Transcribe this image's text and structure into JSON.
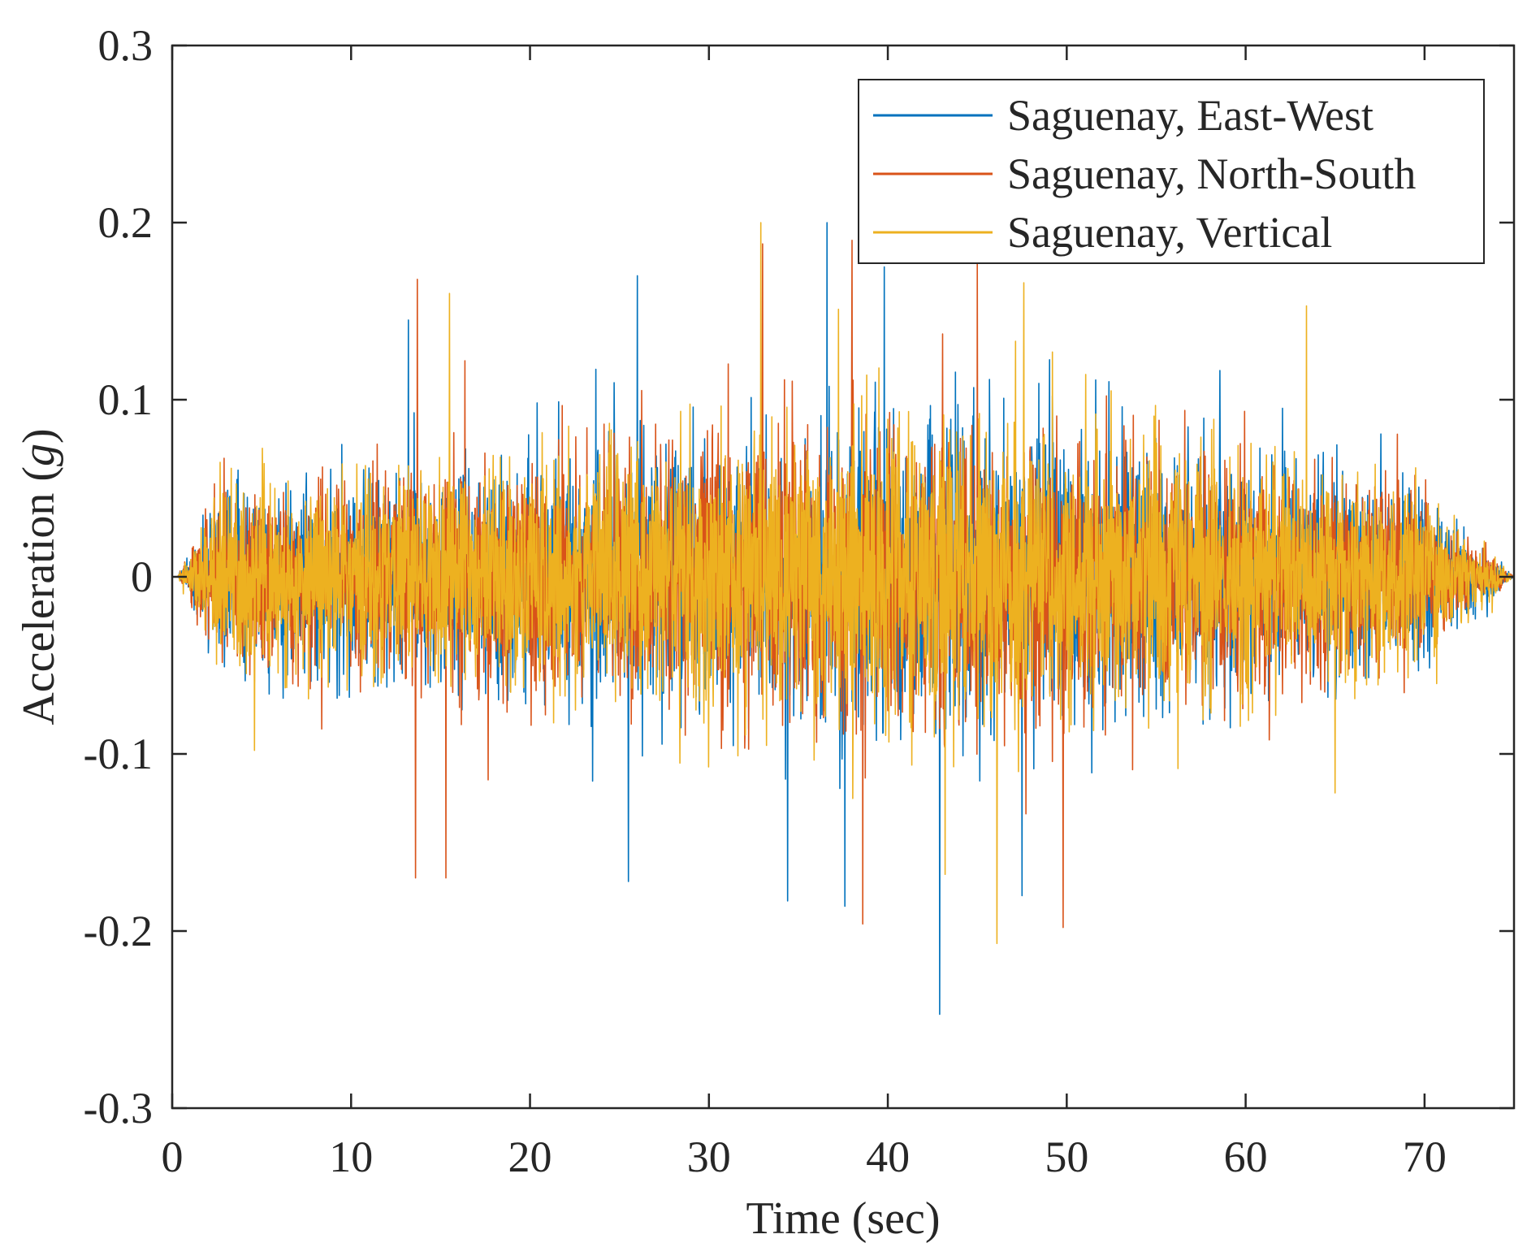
{
  "chart_data": {
    "type": "line",
    "title": "",
    "xlabel": "Time (sec)",
    "ylabel": {
      "prefix": "Acceleration (",
      "italic": "g",
      "suffix": ")"
    },
    "xlim": [
      0,
      75
    ],
    "ylim": [
      -0.3,
      0.3
    ],
    "xticks": [
      "0",
      "10",
      "20",
      "30",
      "40",
      "50",
      "60",
      "70"
    ],
    "xtick_values": [
      0,
      10,
      20,
      30,
      40,
      50,
      60,
      70
    ],
    "yticks": [
      "-0.3",
      "-0.2",
      "-0.1",
      "0",
      "0.1",
      "0.2",
      "0.3"
    ],
    "ytick_values": [
      -0.3,
      -0.2,
      -0.1,
      0,
      0.1,
      0.2,
      0.3
    ],
    "grid": false,
    "legend_position": "top-right",
    "series": [
      {
        "name": "Saguenay, East-West",
        "color": "#0072BD",
        "peaks": [
          {
            "t": 13.2,
            "a": 0.145
          },
          {
            "t": 25.5,
            "a": -0.172
          },
          {
            "t": 26.0,
            "a": 0.17
          },
          {
            "t": 34.4,
            "a": -0.183
          },
          {
            "t": 36.6,
            "a": 0.2
          },
          {
            "t": 37.6,
            "a": -0.186
          },
          {
            "t": 39.8,
            "a": 0.175
          },
          {
            "t": 42.9,
            "a": -0.247
          },
          {
            "t": 47.5,
            "a": -0.18
          }
        ]
      },
      {
        "name": "Saguenay, North-South",
        "color": "#D95319",
        "peaks": [
          {
            "t": 13.7,
            "a": 0.168
          },
          {
            "t": 13.6,
            "a": -0.17
          },
          {
            "t": 15.3,
            "a": -0.17
          },
          {
            "t": 33.0,
            "a": 0.188
          },
          {
            "t": 38.0,
            "a": 0.19
          },
          {
            "t": 38.6,
            "a": -0.196
          },
          {
            "t": 45.0,
            "a": 0.177
          },
          {
            "t": 49.8,
            "a": -0.198
          }
        ]
      },
      {
        "name": "Saguenay, Vertical",
        "color": "#EDB120",
        "peaks": [
          {
            "t": 4.6,
            "a": -0.098
          },
          {
            "t": 15.5,
            "a": 0.16
          },
          {
            "t": 32.9,
            "a": 0.2
          },
          {
            "t": 43.2,
            "a": -0.168
          },
          {
            "t": 46.1,
            "a": -0.207
          },
          {
            "t": 47.6,
            "a": 0.166
          },
          {
            "t": 63.4,
            "a": 0.153
          },
          {
            "t": 65.0,
            "a": -0.122
          }
        ]
      }
    ]
  }
}
